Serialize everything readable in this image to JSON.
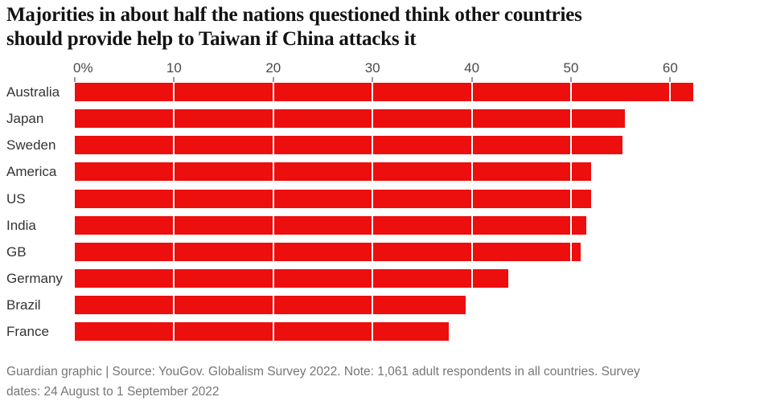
{
  "title": "Majorities in about half the nations questioned think other countries\nshould provide help to Taiwan if China attacks it",
  "footer": "Guardian graphic | Source: YouGov. Globalism Survey 2022. Note: 1,061 adult respondents in all countries. Survey\ndates: 24 August to 1 September 2022",
  "chart_data": {
    "type": "bar",
    "orientation": "horizontal",
    "title": "Majorities in about half the nations questioned think other countries should provide help to Taiwan if China attacks it",
    "source_note": "Guardian graphic | Source: YouGov. Globalism Survey 2022. Note: 1,061 adult respondents in all countries. Survey dates: 24 August to 1 September 2022",
    "categories": [
      "Australia",
      "Japan",
      "Sweden",
      "America",
      "US",
      "India",
      "GB",
      "Germany",
      "Brazil",
      "France"
    ],
    "values": [
      62.3,
      55.4,
      55.2,
      52,
      52,
      51.5,
      51,
      43.7,
      39.4,
      37.7
    ],
    "unit": "%",
    "x_ticks": [
      {
        "label": "0%",
        "value": 0
      },
      {
        "label": "10",
        "value": 10
      },
      {
        "label": "20",
        "value": 20
      },
      {
        "label": "30",
        "value": 30
      },
      {
        "label": "40",
        "value": 40
      },
      {
        "label": "50",
        "value": 50
      },
      {
        "label": "60",
        "value": 60
      }
    ],
    "xlim": [
      0,
      69
    ],
    "ylabel": "",
    "xlabel": "",
    "grid": "vertical-white-over-bars",
    "legend": "none",
    "colors": {
      "bar": "#ed0e0e",
      "title_text": "#121212",
      "axis_text": "#494949",
      "category_text": "#333333",
      "tick_mark": "#999999",
      "gridline": "#ffffff",
      "footer_text": "#767676",
      "background": "#ffffff"
    }
  }
}
